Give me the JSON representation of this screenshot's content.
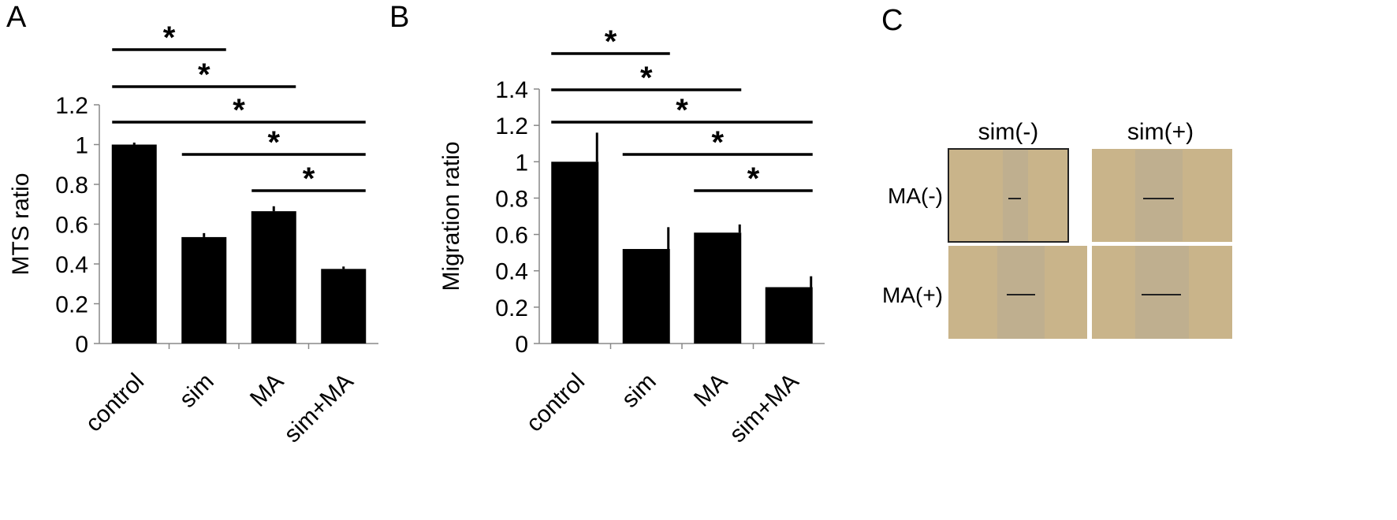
{
  "panels": {
    "a": {
      "label": "A"
    },
    "b": {
      "label": "B"
    },
    "c": {
      "label": "C",
      "col_labels": [
        "sim(-)",
        "sim(+)"
      ],
      "row_labels": [
        "MA(-)",
        "MA(+)"
      ],
      "image_fill": "#c9b48a",
      "gap_fill": "#b7ab93"
    }
  },
  "significance_marker": "*",
  "chart_data": [
    {
      "type": "bar",
      "categories": [
        "control",
        "sim",
        "MA",
        "sim+MA"
      ],
      "values": [
        1.0,
        0.535,
        0.665,
        0.375
      ],
      "errors": [
        0.01,
        0.02,
        0.025,
        0.012
      ],
      "ylabel": "MTS ratio",
      "ylim": [
        0,
        1.2
      ],
      "yticks": [
        "0",
        "0.2",
        "0.4",
        "0.6",
        "0.8",
        "1",
        "1.2"
      ],
      "bar_color": "#000000",
      "grid": false,
      "significance": [
        [
          0,
          1
        ],
        [
          0,
          2
        ],
        [
          0,
          3
        ],
        [
          1,
          3
        ],
        [
          2,
          3
        ]
      ]
    },
    {
      "type": "bar",
      "categories": [
        "control",
        "sim",
        "MA",
        "sim+MA"
      ],
      "values": [
        1.0,
        0.52,
        0.61,
        0.31
      ],
      "errors": [
        0.16,
        0.12,
        0.045,
        0.06
      ],
      "ylabel": "Migration ratio",
      "ylim": [
        0,
        1.4
      ],
      "yticks": [
        "0",
        "0.2",
        "0.4",
        "0.6",
        "0.8",
        "1",
        "1.2",
        "1.4"
      ],
      "bar_color": "#000000",
      "grid": false,
      "significance": [
        [
          0,
          1
        ],
        [
          0,
          2
        ],
        [
          0,
          3
        ],
        [
          1,
          3
        ],
        [
          2,
          3
        ]
      ]
    }
  ]
}
